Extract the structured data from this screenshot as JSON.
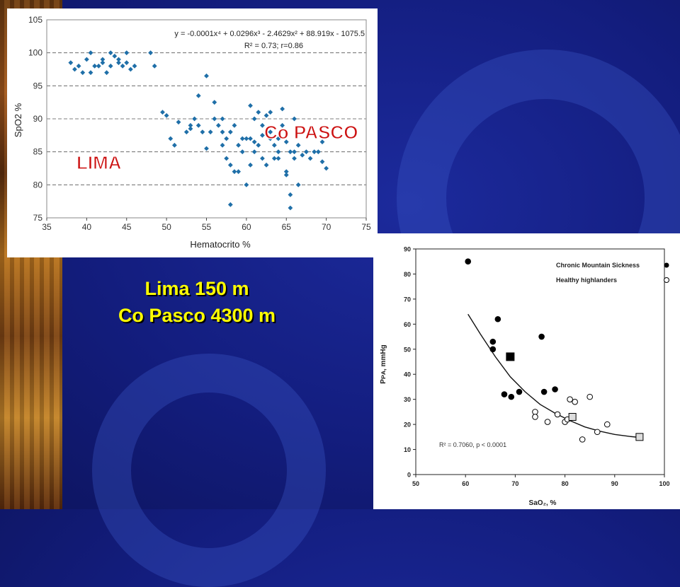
{
  "colors": {
    "accent_yellow": "#ffff00",
    "series_blue": "#1f6fa8",
    "label_red": "#cc1111"
  },
  "captions": {
    "line1": "Lima 150 m",
    "line2": "Co Pasco 4300 m"
  },
  "chart_data": [
    {
      "type": "scatter",
      "xlabel": "Hematocrito %",
      "ylabel": "SpO2 %",
      "xlim": [
        35,
        75
      ],
      "ylim": [
        75,
        105
      ],
      "xticks": [
        35,
        40,
        45,
        50,
        55,
        60,
        65,
        70,
        75
      ],
      "yticks": [
        75,
        80,
        85,
        90,
        95,
        100,
        105
      ],
      "grid": "horizontal dashed",
      "equation": "y = -0.0001x⁴ + 0.0296x³ - 2.4629x² + 88.919x - 1075.5",
      "r2": "R² = 0.73; r=0.86",
      "labels": {
        "lima": "LIMA",
        "copasco": "Co PASCO"
      },
      "points": [
        [
          38,
          98.5
        ],
        [
          38.5,
          97.5
        ],
        [
          39,
          98
        ],
        [
          39.5,
          97
        ],
        [
          40,
          99
        ],
        [
          40.5,
          100
        ],
        [
          40.5,
          97
        ],
        [
          41,
          98
        ],
        [
          41.5,
          98
        ],
        [
          42,
          98.5
        ],
        [
          42.5,
          97
        ],
        [
          42,
          99
        ],
        [
          43,
          98
        ],
        [
          43,
          100
        ],
        [
          43.5,
          99.5
        ],
        [
          44,
          98.5
        ],
        [
          44,
          99
        ],
        [
          44.5,
          98
        ],
        [
          45,
          100
        ],
        [
          45,
          98.5
        ],
        [
          45.5,
          97.5
        ],
        [
          46,
          98
        ],
        [
          48,
          100
        ],
        [
          48.5,
          98
        ],
        [
          49.5,
          91
        ],
        [
          50,
          90.5
        ],
        [
          50.5,
          87
        ],
        [
          51,
          86
        ],
        [
          51.5,
          89.5
        ],
        [
          52.5,
          88
        ],
        [
          53,
          89
        ],
        [
          53,
          88.5
        ],
        [
          53.5,
          90
        ],
        [
          54,
          93.5
        ],
        [
          54,
          89
        ],
        [
          54.5,
          88
        ],
        [
          55,
          96.5
        ],
        [
          55,
          85.5
        ],
        [
          55.5,
          88
        ],
        [
          56,
          92.5
        ],
        [
          56.5,
          89
        ],
        [
          57,
          90
        ],
        [
          57,
          88
        ],
        [
          57.5,
          87
        ],
        [
          57.5,
          84
        ],
        [
          58,
          88
        ],
        [
          58,
          83
        ],
        [
          58,
          77
        ],
        [
          58.5,
          89
        ],
        [
          58.5,
          82
        ],
        [
          59,
          86
        ],
        [
          59,
          82
        ],
        [
          59.5,
          85
        ],
        [
          59.5,
          87
        ],
        [
          60,
          87
        ],
        [
          60,
          80
        ],
        [
          60.5,
          83
        ],
        [
          60.5,
          87
        ],
        [
          60.5,
          92
        ],
        [
          61,
          85
        ],
        [
          61,
          90
        ],
        [
          61.5,
          91
        ],
        [
          61.5,
          86
        ],
        [
          62,
          84
        ],
        [
          62,
          89
        ],
        [
          62.5,
          90.5
        ],
        [
          63,
          91
        ],
        [
          63,
          88
        ],
        [
          63.5,
          84
        ],
        [
          63.5,
          86
        ],
        [
          64,
          85
        ],
        [
          64,
          87
        ],
        [
          64.5,
          91.5
        ],
        [
          64.5,
          89
        ],
        [
          65,
          82
        ],
        [
          65,
          86.5
        ],
        [
          65,
          81.5
        ],
        [
          65.5,
          76.5
        ],
        [
          65.5,
          78.5
        ],
        [
          65.5,
          85
        ],
        [
          66,
          84
        ],
        [
          66,
          90
        ],
        [
          66.5,
          80
        ],
        [
          66.5,
          86
        ],
        [
          67,
          84.5
        ],
        [
          67.5,
          85
        ],
        [
          68,
          84
        ],
        [
          68.5,
          85
        ],
        [
          69,
          85
        ],
        [
          69.5,
          86.5
        ],
        [
          69.5,
          83.5
        ],
        [
          70,
          82.5
        ],
        [
          64,
          84
        ],
        [
          63,
          87
        ],
        [
          62.5,
          83
        ],
        [
          66,
          85
        ],
        [
          61,
          86.5
        ],
        [
          56,
          90
        ],
        [
          57,
          86
        ],
        [
          62,
          87.5
        ]
      ]
    },
    {
      "type": "scatter",
      "xlabel": "SaO₂, %",
      "ylabel": "Pᴘᴀ, mmHg",
      "xlim": [
        50,
        100
      ],
      "ylim": [
        0,
        90
      ],
      "xticks": [
        50,
        60,
        70,
        80,
        90,
        100
      ],
      "yticks": [
        0,
        10,
        20,
        30,
        40,
        50,
        60,
        70,
        80,
        90
      ],
      "annotation": "R² = 0.7060, p < 0.0001",
      "legend": {
        "position": "top-right",
        "cms": "Chronic Mountain Sickness",
        "healthy": "Healthy highlanders"
      },
      "series": [
        {
          "name": "Chronic Mountain Sickness",
          "marker": "filled-circle",
          "points": [
            [
              60.5,
              85
            ],
            [
              65.5,
              53
            ],
            [
              65.5,
              50
            ],
            [
              66.5,
              62
            ],
            [
              67.8,
              32
            ],
            [
              69.2,
              31
            ],
            [
              70.8,
              33
            ],
            [
              75.3,
              55
            ],
            [
              75.8,
              33
            ],
            [
              78,
              34
            ]
          ]
        },
        {
          "name": "Healthy highlanders",
          "marker": "open-circle",
          "points": [
            [
              74,
              25
            ],
            [
              74,
              23
            ],
            [
              76.5,
              21
            ],
            [
              78.5,
              24
            ],
            [
              80,
              21
            ],
            [
              80.5,
              22
            ],
            [
              81,
              30
            ],
            [
              82,
              29
            ],
            [
              83.5,
              14
            ],
            [
              85,
              31
            ],
            [
              86.5,
              17
            ],
            [
              88.5,
              20
            ]
          ]
        }
      ],
      "mean_markers": [
        {
          "marker": "filled-square",
          "x": 69,
          "y": 47
        },
        {
          "marker": "open-square",
          "x": 81.5,
          "y": 23
        },
        {
          "marker": "open-square",
          "x": 95,
          "y": 15
        }
      ],
      "fit_curve": [
        [
          60.5,
          64
        ],
        [
          63,
          56
        ],
        [
          66,
          47
        ],
        [
          69,
          39
        ],
        [
          72,
          33
        ],
        [
          75,
          28
        ],
        [
          78,
          24.5
        ],
        [
          81,
          21.5
        ],
        [
          84,
          19
        ],
        [
          87,
          17.3
        ],
        [
          90,
          16
        ],
        [
          93,
          15.2
        ],
        [
          95,
          14.8
        ]
      ]
    }
  ]
}
